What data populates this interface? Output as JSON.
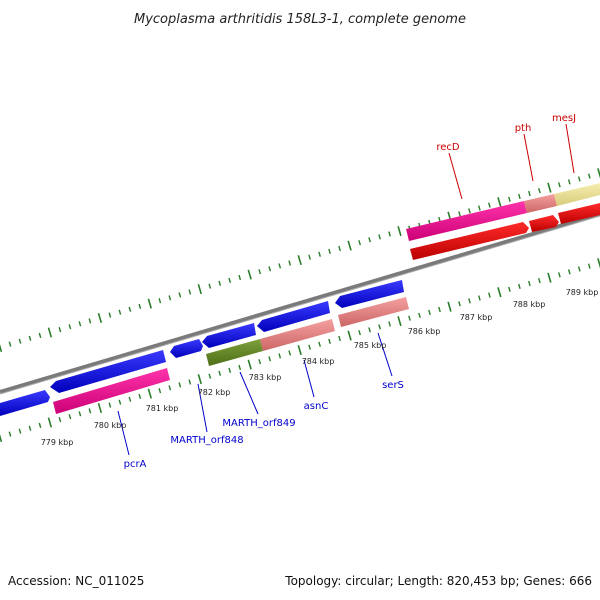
{
  "title": "Mycoplasma arthritidis 158L3-1, complete genome",
  "footer": {
    "accession": "Accession: NC_011025",
    "summary": "Topology: circular; Length: 820,453 bp; Genes: 666"
  },
  "kbp_labels": [
    "779 kbp",
    "780 kbp",
    "781 kbp",
    "782 kbp",
    "783 kbp",
    "784 kbp",
    "785 kbp",
    "786 kbp",
    "787 kbp",
    "788 kbp",
    "789 kbp"
  ],
  "gene_labels": {
    "recD": "recD",
    "pth": "pth",
    "mesJ": "mesJ",
    "pcrA": "pcrA",
    "MARTH_orf848": "MARTH_orf848",
    "MARTH_orf849": "MARTH_orf849",
    "asnC": "asnC",
    "serS": "serS"
  },
  "colors": {
    "label_red": "#cc0000",
    "label_blue": "#0000cc",
    "tick_green": "#2a7d2a",
    "backbone": "#888888",
    "cds_blue": "#1010ee",
    "magenta": "#ee1199",
    "salmon": "#ee8888",
    "olive": "#6b8e23",
    "red": "#ee0000",
    "pale_yellow": "#eee49a"
  }
}
